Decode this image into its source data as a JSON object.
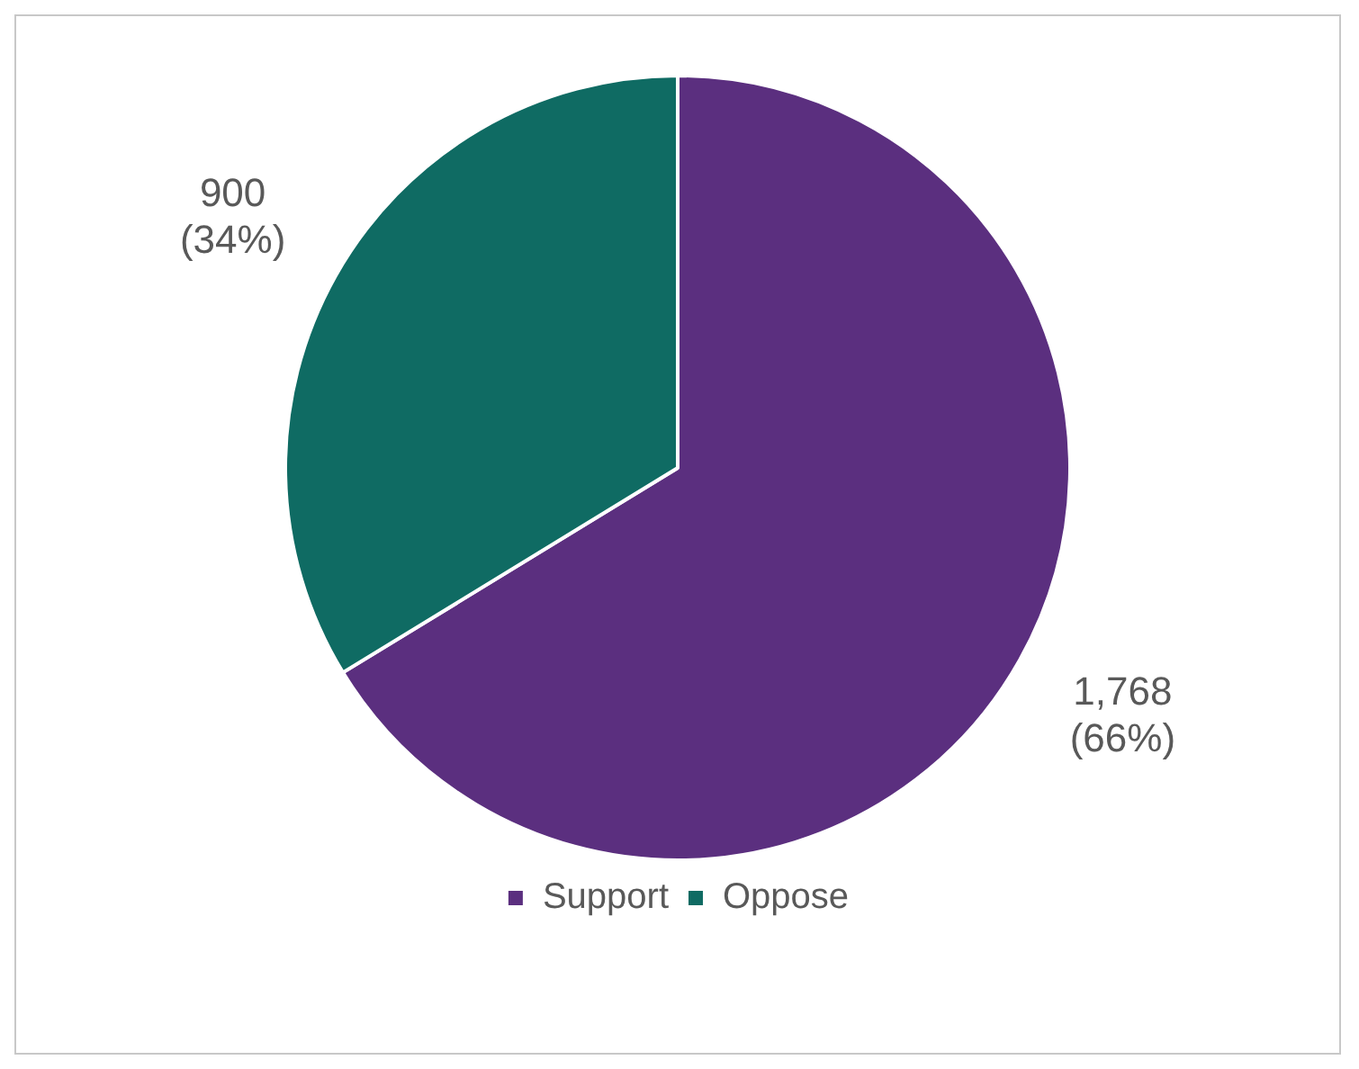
{
  "chart_data": {
    "type": "pie",
    "categories": [
      "Support",
      "Oppose"
    ],
    "values": [
      1768,
      900
    ],
    "colors": [
      "#5b2f7f",
      "#0f6b63"
    ],
    "value_labels": [
      "1,768 (66%)",
      "900 (34%)"
    ],
    "legend": "bottom"
  }
}
